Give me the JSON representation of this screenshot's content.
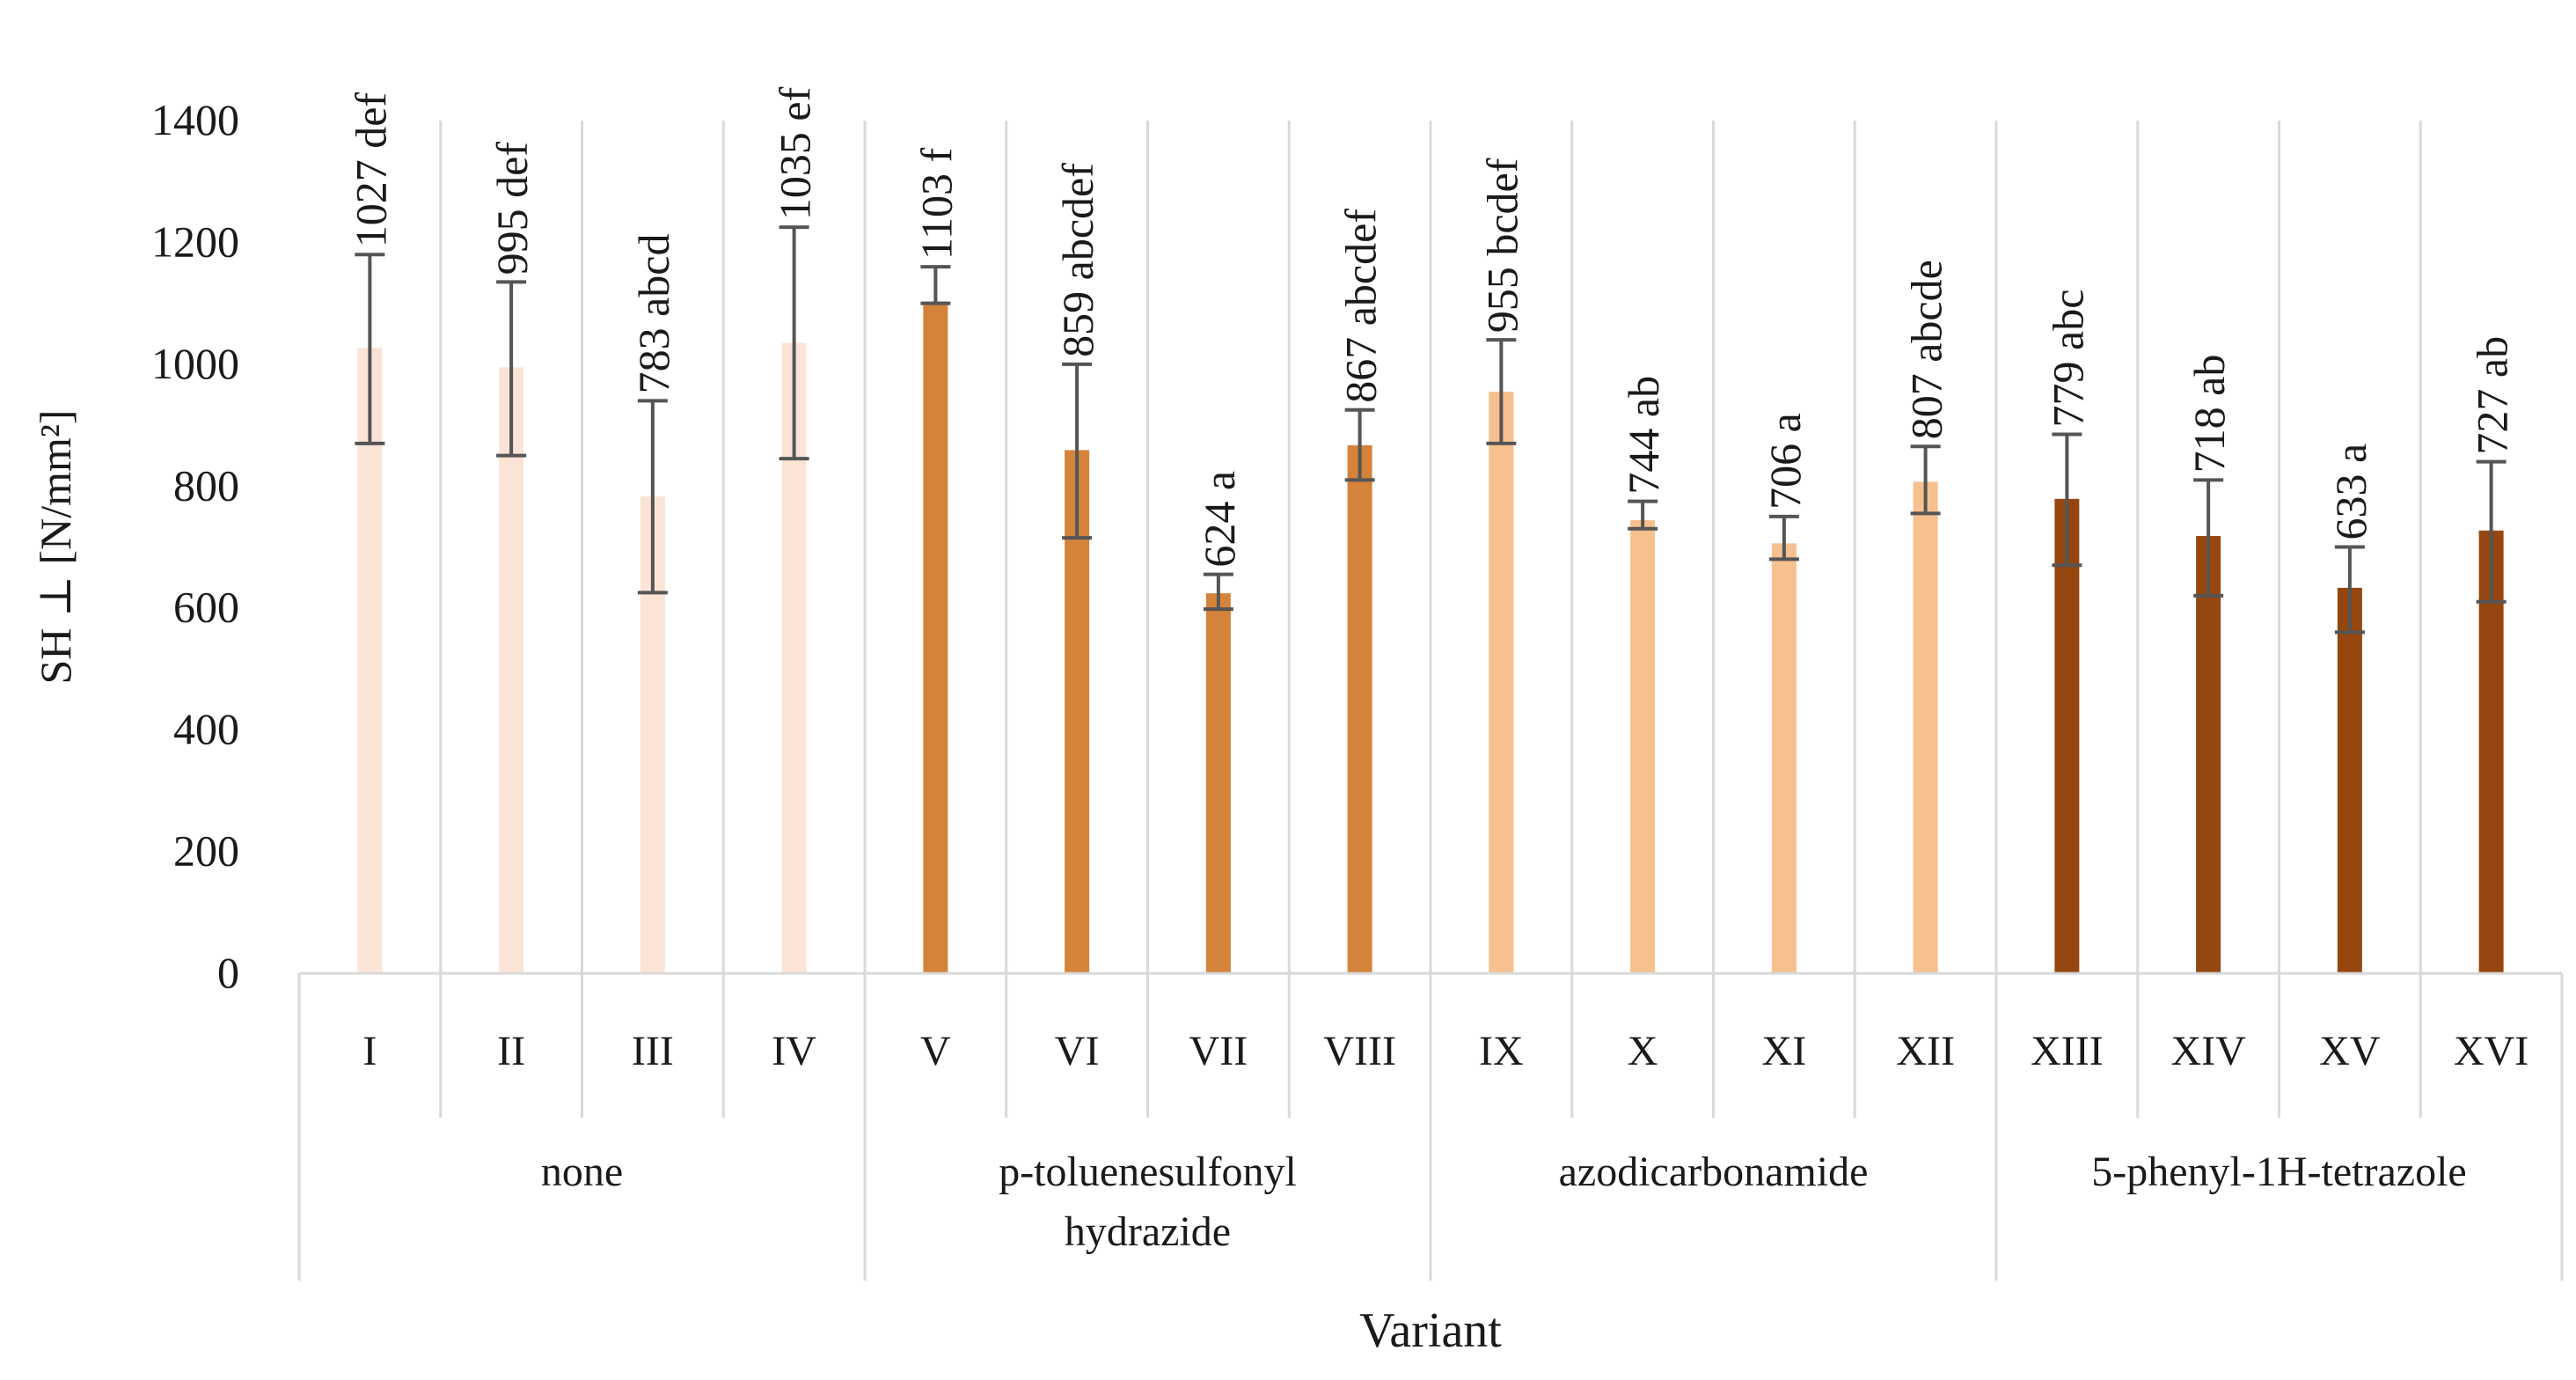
{
  "chart_data": {
    "type": "bar",
    "ylabel": "SH ⊥ [N/mm²]",
    "xlabel": "Variant",
    "ylim": [
      0,
      1400
    ],
    "yticks": [
      0,
      200,
      400,
      600,
      800,
      1000,
      1200,
      1400
    ],
    "grid": "vertical separators",
    "categories": [
      "I",
      "II",
      "III",
      "IV",
      "V",
      "VI",
      "VII",
      "VIII",
      "IX",
      "X",
      "XI",
      "XII",
      "XIII",
      "XIV",
      "XV",
      "XVI"
    ],
    "values": [
      1027,
      995,
      783,
      1035,
      1103,
      859,
      624,
      867,
      955,
      744,
      706,
      807,
      779,
      718,
      633,
      727
    ],
    "error_low": [
      870,
      850,
      625,
      845,
      1100,
      715,
      598,
      810,
      870,
      730,
      680,
      755,
      670,
      620,
      560,
      610
    ],
    "error_high": [
      1180,
      1135,
      940,
      1225,
      1160,
      1000,
      655,
      925,
      1040,
      775,
      750,
      865,
      885,
      810,
      700,
      840
    ],
    "data_labels": [
      "1027 def",
      "995 def",
      "783 abcd",
      "1035 ef",
      "1103 f",
      "859 abcdef",
      "624 a",
      "867 abcdef",
      "955 bcdef",
      "744 ab",
      "706 a",
      "807 abcde",
      "779 abc",
      "718 ab",
      "633 a",
      "727 ab"
    ],
    "groups": [
      {
        "name": "none",
        "lines": [
          "none"
        ],
        "color": "#fbe4d5"
      },
      {
        "name": "p-toluenesulfonyl hydrazide",
        "lines": [
          "p-toluenesulfonyl",
          "hydrazide"
        ],
        "color": "#d5833a"
      },
      {
        "name": "azodicarbonamide",
        "lines": [
          "azodicarbonamide"
        ],
        "color": "#f7c08f"
      },
      {
        "name": "5-phenyl-1H-tetrazole",
        "lines": [
          "5-phenyl-1H-tetrazole"
        ],
        "color": "#96470f"
      }
    ]
  }
}
